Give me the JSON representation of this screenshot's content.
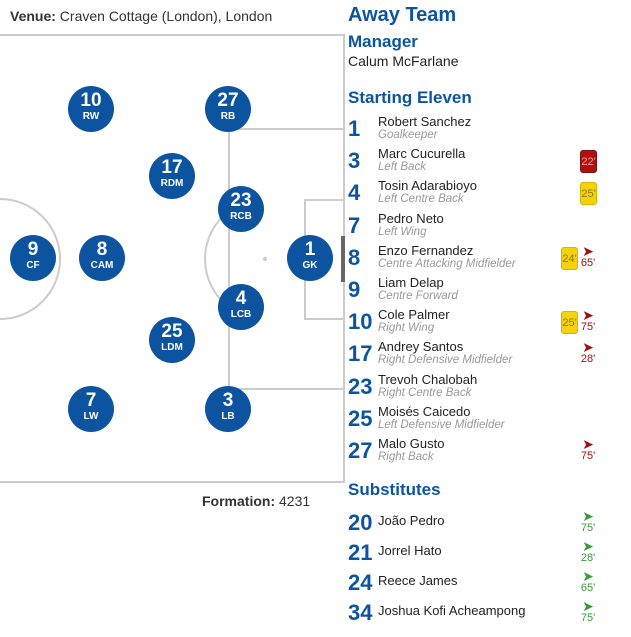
{
  "venue": {
    "label": "Venue:",
    "value": "Craven Cottage (London), London"
  },
  "formation": {
    "label": "Formation:",
    "value": "4231"
  },
  "team_title": "Away Team",
  "manager": {
    "heading": "Manager",
    "name": "Calum McFarlane"
  },
  "starting_heading": "Starting Eleven",
  "substitutes_heading": "Substitutes",
  "colors": {
    "accent": "#0d54a0",
    "red_card": "#b01010",
    "yellow_card": "#f5d20a",
    "sub_out": "#a01010",
    "sub_in": "#3a9a3a"
  },
  "pitch_players": [
    {
      "number": "10",
      "pos": "RW"
    },
    {
      "number": "27",
      "pos": "RB"
    },
    {
      "number": "17",
      "pos": "RDM"
    },
    {
      "number": "23",
      "pos": "RCB"
    },
    {
      "number": "9",
      "pos": "CF"
    },
    {
      "number": "8",
      "pos": "CAM"
    },
    {
      "number": "1",
      "pos": "GK"
    },
    {
      "number": "4",
      "pos": "LCB"
    },
    {
      "number": "25",
      "pos": "LDM"
    },
    {
      "number": "7",
      "pos": "LW"
    },
    {
      "number": "3",
      "pos": "LB"
    }
  ],
  "starting": [
    {
      "number": "1",
      "name": "Robert Sanchez",
      "position": "Goalkeeper"
    },
    {
      "number": "3",
      "name": "Marc Cucurella",
      "position": "Left Back",
      "red_card": "22'"
    },
    {
      "number": "4",
      "name": "Tosin Adarabioyo",
      "position": "Left Centre Back",
      "yellow_card": "25'"
    },
    {
      "number": "7",
      "name": "Pedro Neto",
      "position": "Left Wing"
    },
    {
      "number": "8",
      "name": "Enzo Fernandez",
      "position": "Centre Attacking Midfielder",
      "yellow_card": "24'",
      "sub_out": "65'"
    },
    {
      "number": "9",
      "name": "Liam Delap",
      "position": "Centre Forward"
    },
    {
      "number": "10",
      "name": "Cole Palmer",
      "position": "Right Wing",
      "yellow_card": "25'",
      "sub_out": "75'"
    },
    {
      "number": "17",
      "name": "Andrey Santos",
      "position": "Right Defensive Midfielder",
      "sub_out": "28'"
    },
    {
      "number": "23",
      "name": "Trevoh Chalobah",
      "position": "Right Centre Back"
    },
    {
      "number": "25",
      "name": "Moisés Caicedo",
      "position": "Left Defensive Midfielder"
    },
    {
      "number": "27",
      "name": "Malo Gusto",
      "position": "Right Back",
      "sub_out": "75'"
    }
  ],
  "substitutes": [
    {
      "number": "20",
      "name": "João Pedro",
      "sub_in": "75'"
    },
    {
      "number": "21",
      "name": "Jorrel Hato",
      "sub_in": "28'"
    },
    {
      "number": "24",
      "name": "Reece James",
      "sub_in": "65'"
    },
    {
      "number": "34",
      "name": "Joshua Kofi Acheampong",
      "sub_in": "75'"
    }
  ]
}
